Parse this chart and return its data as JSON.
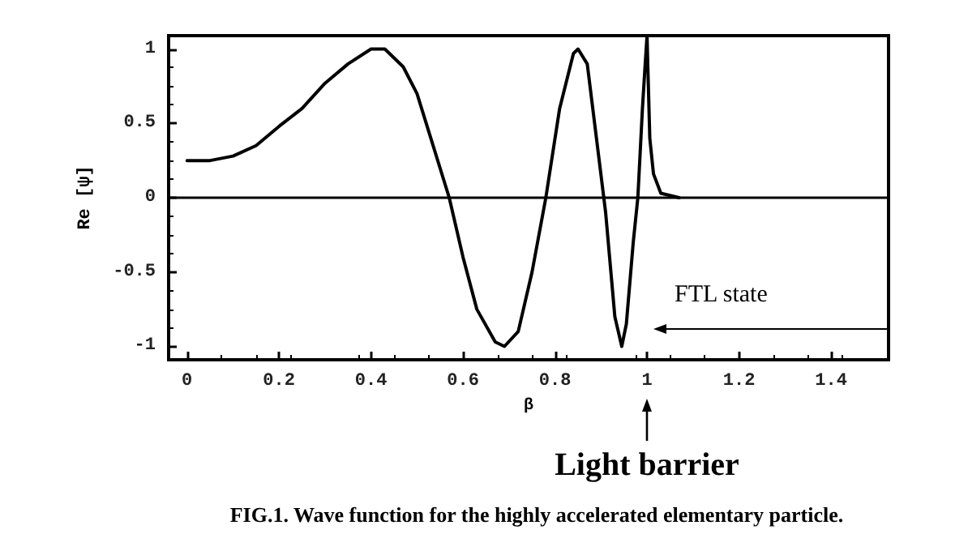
{
  "chart_data": {
    "type": "line",
    "xlabel": "β",
    "ylabel": "Re [ψ]",
    "annotations": [
      "FTL state",
      "Light barrier",
      "FIG.1. Wave function for the highly accelerated elementary particle."
    ],
    "xlim": [
      -0.04,
      1.525
    ],
    "xticks": [
      0,
      0.2,
      0.4,
      0.6,
      0.8,
      1,
      1.2,
      1.4
    ],
    "ylim": [
      -1.09,
      1.09
    ],
    "yticks": [
      -1,
      -0.5,
      0,
      0.5,
      1
    ],
    "ref_lines": [
      {
        "axis": "y",
        "value": 0,
        "color": "#000000"
      }
    ],
    "grid": false,
    "marker": "none",
    "line_style": "solid",
    "series": [
      {
        "color": "#000000",
        "x": [
          0,
          0.05,
          0.1,
          0.15,
          0.2,
          0.25,
          0.3,
          0.35,
          0.4,
          0.43,
          0.47,
          0.5,
          0.53,
          0.57,
          0.6,
          0.63,
          0.67,
          0.69,
          0.72,
          0.75,
          0.78,
          0.81,
          0.84,
          0.85,
          0.87,
          0.89,
          0.91,
          0.93,
          0.945,
          0.955,
          0.97,
          0.98,
          0.99,
          0.995,
          1.0,
          1.002,
          1.006,
          1.014,
          1.03,
          1.07
        ],
        "values": [
          0.25,
          0.25,
          0.28,
          0.35,
          0.48,
          0.6,
          0.77,
          0.9,
          1.0,
          1.0,
          0.88,
          0.7,
          0.4,
          0,
          -0.4,
          -0.75,
          -0.97,
          -1.0,
          -0.9,
          -0.5,
          0,
          0.6,
          0.97,
          1.0,
          0.9,
          0.4,
          -0.1,
          -0.8,
          -1.0,
          -0.85,
          -0.3,
          0,
          0.6,
          0.85,
          1.09,
          0.85,
          0.4,
          0.16,
          0.03,
          0
        ]
      }
    ]
  }
}
